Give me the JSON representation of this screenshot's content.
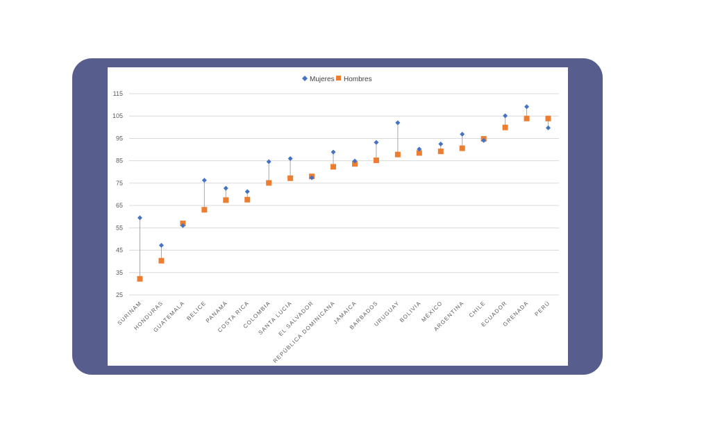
{
  "chart_data": {
    "type": "scatter",
    "categories": [
      "SURINAM",
      "HONDURAS",
      "GUATEMALA",
      "BELICE",
      "PANAMÁ",
      "COSTA RICA",
      "COLOMBIA",
      "SANTA LUCIA",
      "EL SALVADOR",
      "REPÚBLICA DOMINICANA",
      "JAMAICA",
      "BARBADOS",
      "URUGUAY",
      "BOLIVIA",
      "MÉXICO",
      "ARGENTINA",
      "CHILE",
      "ECUADOR",
      "GRENADA",
      "PERÚ"
    ],
    "series": [
      {
        "name": "Mujeres",
        "marker": "diamond",
        "color": "#4472c4",
        "values": [
          59.5,
          47.2,
          56,
          76.3,
          72.7,
          71.2,
          84.6,
          86,
          77.4,
          88.9,
          84.9,
          93.2,
          102,
          90.2,
          92.5,
          96.9,
          94.1,
          105.1,
          109.2,
          99.7
        ]
      },
      {
        "name": "Hombres",
        "marker": "square",
        "color": "#ed7d31",
        "values": [
          32.2,
          40.3,
          57,
          63.1,
          67.4,
          67.6,
          75.1,
          77.2,
          78,
          82.3,
          83.6,
          85.2,
          87.8,
          88.5,
          89.2,
          90.6,
          94.8,
          99.9,
          103.9,
          103.9
        ]
      }
    ],
    "y_ticks": [
      "25",
      "35",
      "45",
      "55",
      "65",
      "75",
      "85",
      "95",
      "105",
      "115"
    ],
    "ylim": [
      25,
      115
    ],
    "grid": true,
    "legend": "top-center",
    "connector_color": "#a6a6a6"
  }
}
